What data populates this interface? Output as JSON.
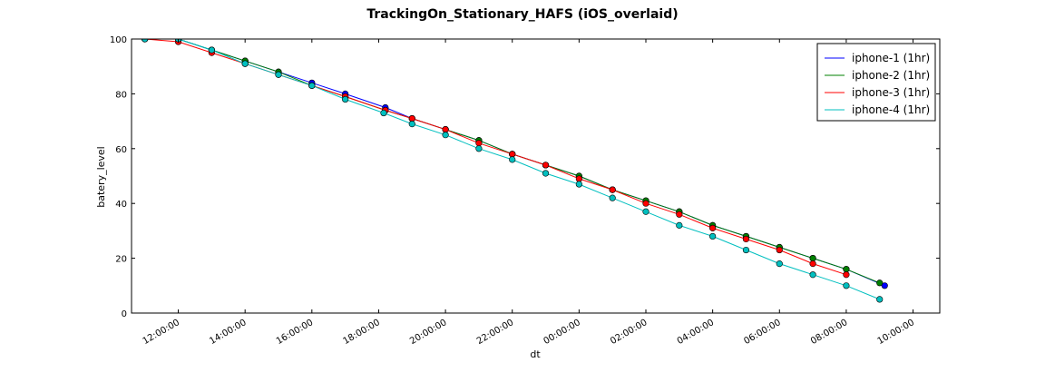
{
  "chart_data": {
    "type": "line",
    "title": "TrackingOn_Stationary_HAFS (iOS_overlaid)",
    "xlabel": "dt",
    "ylabel": "batery_level",
    "ylim": [
      0,
      100
    ],
    "xlim_hours": [
      10.6,
      34.8
    ],
    "x_unit": "hour of day (hours past 24 are next day)",
    "y_ticks": [
      "0",
      "20",
      "40",
      "60",
      "80",
      "100"
    ],
    "x_tick_hours": [
      12,
      14,
      16,
      18,
      20,
      22,
      24,
      26,
      28,
      30,
      32,
      34
    ],
    "x_tick_labels": [
      "12:00:00",
      "14:00:00",
      "16:00:00",
      "18:00:00",
      "20:00:00",
      "22:00:00",
      "00:00:00",
      "02:00:00",
      "04:00:00",
      "06:00:00",
      "08:00:00",
      "10:00:00"
    ],
    "grid": false,
    "legend_position": "top-right",
    "series": [
      {
        "name": "iphone-1 (1hr)",
        "color": "#0000ff",
        "points": [
          [
            11,
            100
          ],
          [
            12,
            100
          ],
          [
            13,
            96
          ],
          [
            14,
            92
          ],
          [
            15,
            88
          ],
          [
            16,
            84
          ],
          [
            17,
            80
          ],
          [
            18.2,
            75
          ],
          [
            19,
            71
          ],
          [
            20,
            67
          ],
          [
            21,
            63
          ],
          [
            22,
            58
          ],
          [
            23,
            54
          ],
          [
            24,
            50
          ],
          [
            25,
            45
          ],
          [
            26,
            41
          ],
          [
            27,
            37
          ],
          [
            28,
            32
          ],
          [
            29,
            28
          ],
          [
            30,
            24
          ],
          [
            31,
            20
          ],
          [
            32,
            16
          ],
          [
            33.15,
            10
          ]
        ]
      },
      {
        "name": "iphone-2 (1hr)",
        "color": "#008000",
        "points": [
          [
            11,
            100
          ],
          [
            12,
            100
          ],
          [
            13,
            96
          ],
          [
            14,
            92
          ],
          [
            15,
            88
          ],
          [
            16,
            83
          ],
          [
            17,
            79
          ],
          [
            18.2,
            74
          ],
          [
            19,
            71
          ],
          [
            20,
            67
          ],
          [
            21,
            63
          ],
          [
            22,
            58
          ],
          [
            23,
            54
          ],
          [
            24,
            50
          ],
          [
            25,
            45
          ],
          [
            26,
            41
          ],
          [
            27,
            37
          ],
          [
            28,
            32
          ],
          [
            29,
            28
          ],
          [
            30,
            24
          ],
          [
            31,
            20
          ],
          [
            32,
            16
          ],
          [
            33,
            11
          ]
        ]
      },
      {
        "name": "iphone-3 (1hr)",
        "color": "#ff0000",
        "points": [
          [
            11,
            100
          ],
          [
            12,
            99
          ],
          [
            13,
            95
          ],
          [
            14,
            91
          ],
          [
            15,
            87
          ],
          [
            16,
            83
          ],
          [
            17,
            79
          ],
          [
            18.2,
            74
          ],
          [
            19,
            71
          ],
          [
            20,
            67
          ],
          [
            21,
            62
          ],
          [
            22,
            58
          ],
          [
            23,
            54
          ],
          [
            24,
            49
          ],
          [
            25,
            45
          ],
          [
            26,
            40
          ],
          [
            27,
            36
          ],
          [
            28,
            31
          ],
          [
            29,
            27
          ],
          [
            30,
            23
          ],
          [
            31,
            18
          ],
          [
            32,
            14
          ]
        ]
      },
      {
        "name": "iphone-4 (1hr)",
        "color": "#00bfbf",
        "points": [
          [
            11,
            100
          ],
          [
            12,
            100
          ],
          [
            13,
            96
          ],
          [
            14,
            91
          ],
          [
            15,
            87
          ],
          [
            16,
            83
          ],
          [
            17,
            78
          ],
          [
            18.15,
            73
          ],
          [
            19,
            69
          ],
          [
            20,
            65
          ],
          [
            21,
            60
          ],
          [
            22,
            56
          ],
          [
            23,
            51
          ],
          [
            24,
            47
          ],
          [
            25,
            42
          ],
          [
            26,
            37
          ],
          [
            27,
            32
          ],
          [
            28,
            28
          ],
          [
            29,
            23
          ],
          [
            30,
            18
          ],
          [
            31,
            14
          ],
          [
            32,
            10
          ],
          [
            33,
            5
          ]
        ]
      }
    ]
  }
}
